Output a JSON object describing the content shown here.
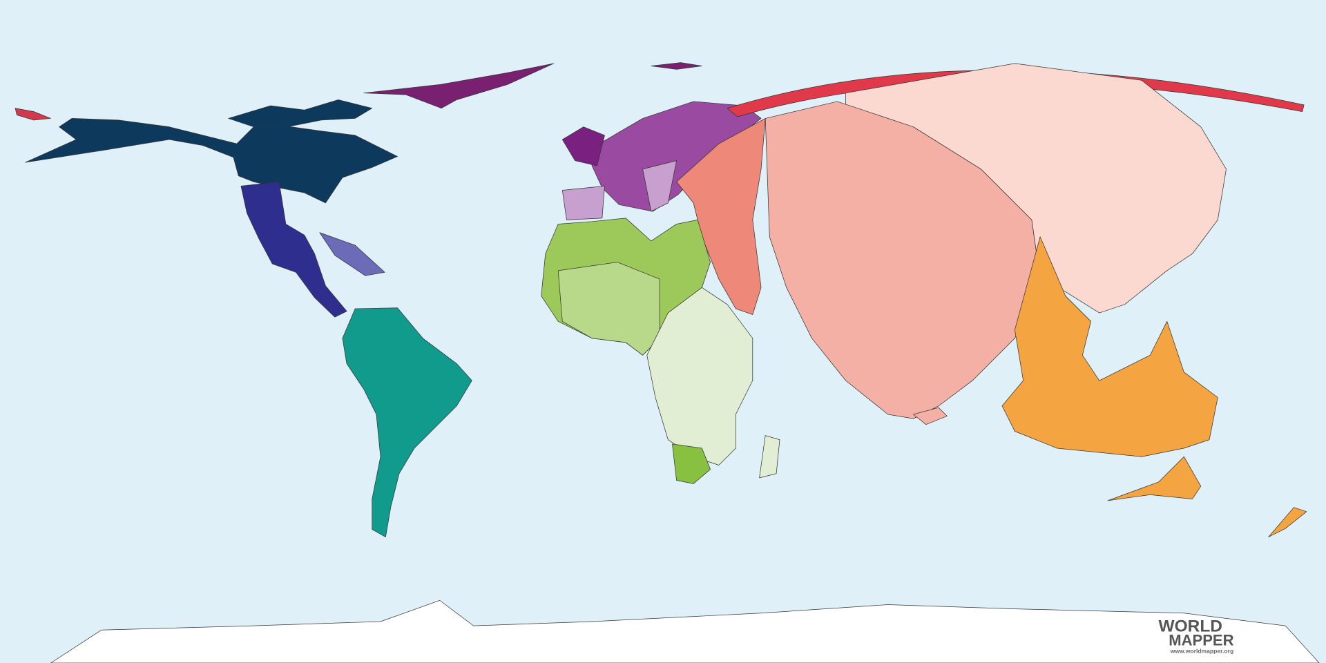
{
  "logo": {
    "line1": "WORLD",
    "line2": "MAPPER",
    "url": "www.worldmapper.org"
  }
}
